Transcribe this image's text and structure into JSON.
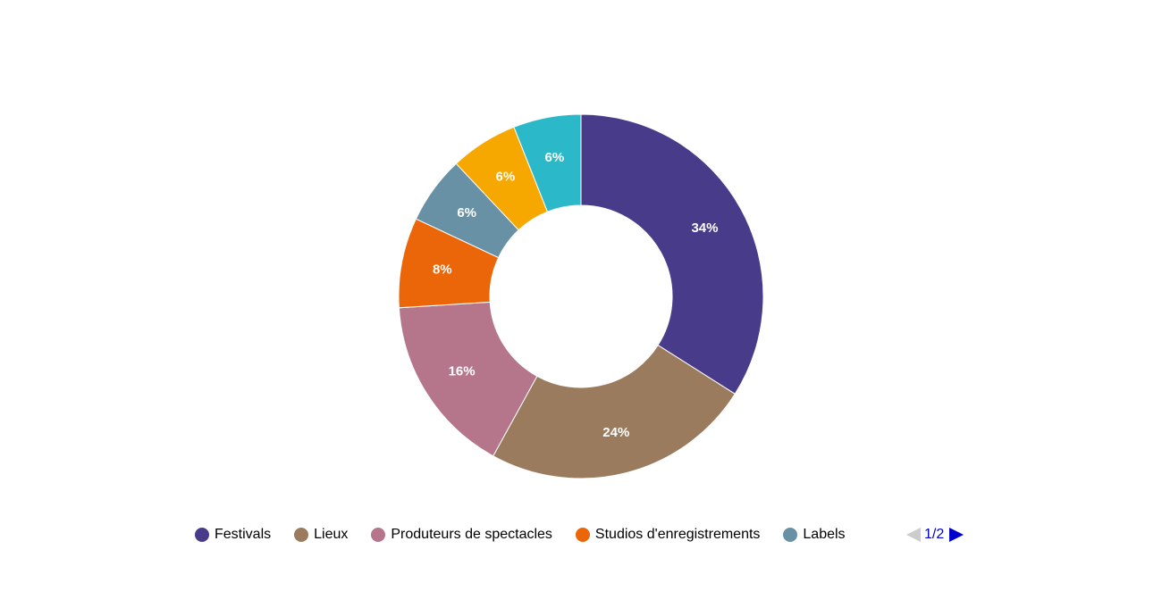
{
  "chart_data": {
    "type": "pie",
    "title": "",
    "donut": true,
    "slices": [
      {
        "name": "Festivals",
        "value": 34,
        "label": "34%",
        "color": "#483b8a"
      },
      {
        "name": "Lieux",
        "value": 24,
        "label": "24%",
        "color": "#9b7b5e"
      },
      {
        "name": "Produteurs de spectacles",
        "value": 16,
        "label": "16%",
        "color": "#b5768b"
      },
      {
        "name": "Studios d'enregistrements",
        "value": 8,
        "label": "8%",
        "color": "#eb6608"
      },
      {
        "name": "Labels",
        "value": 6,
        "label": "6%",
        "color": "#6891a6"
      },
      {
        "name": "",
        "value": 6,
        "label": "6%",
        "color": "#f6a700"
      },
      {
        "name": "",
        "value": 6,
        "label": "6%",
        "color": "#2bb9c9"
      }
    ],
    "legend": {
      "placement": "bottom",
      "items": [
        "Festivals",
        "Lieux",
        "Produteurs de spectacles",
        "Studios d'enregistrements",
        "Labels"
      ],
      "page": "1/2"
    }
  }
}
